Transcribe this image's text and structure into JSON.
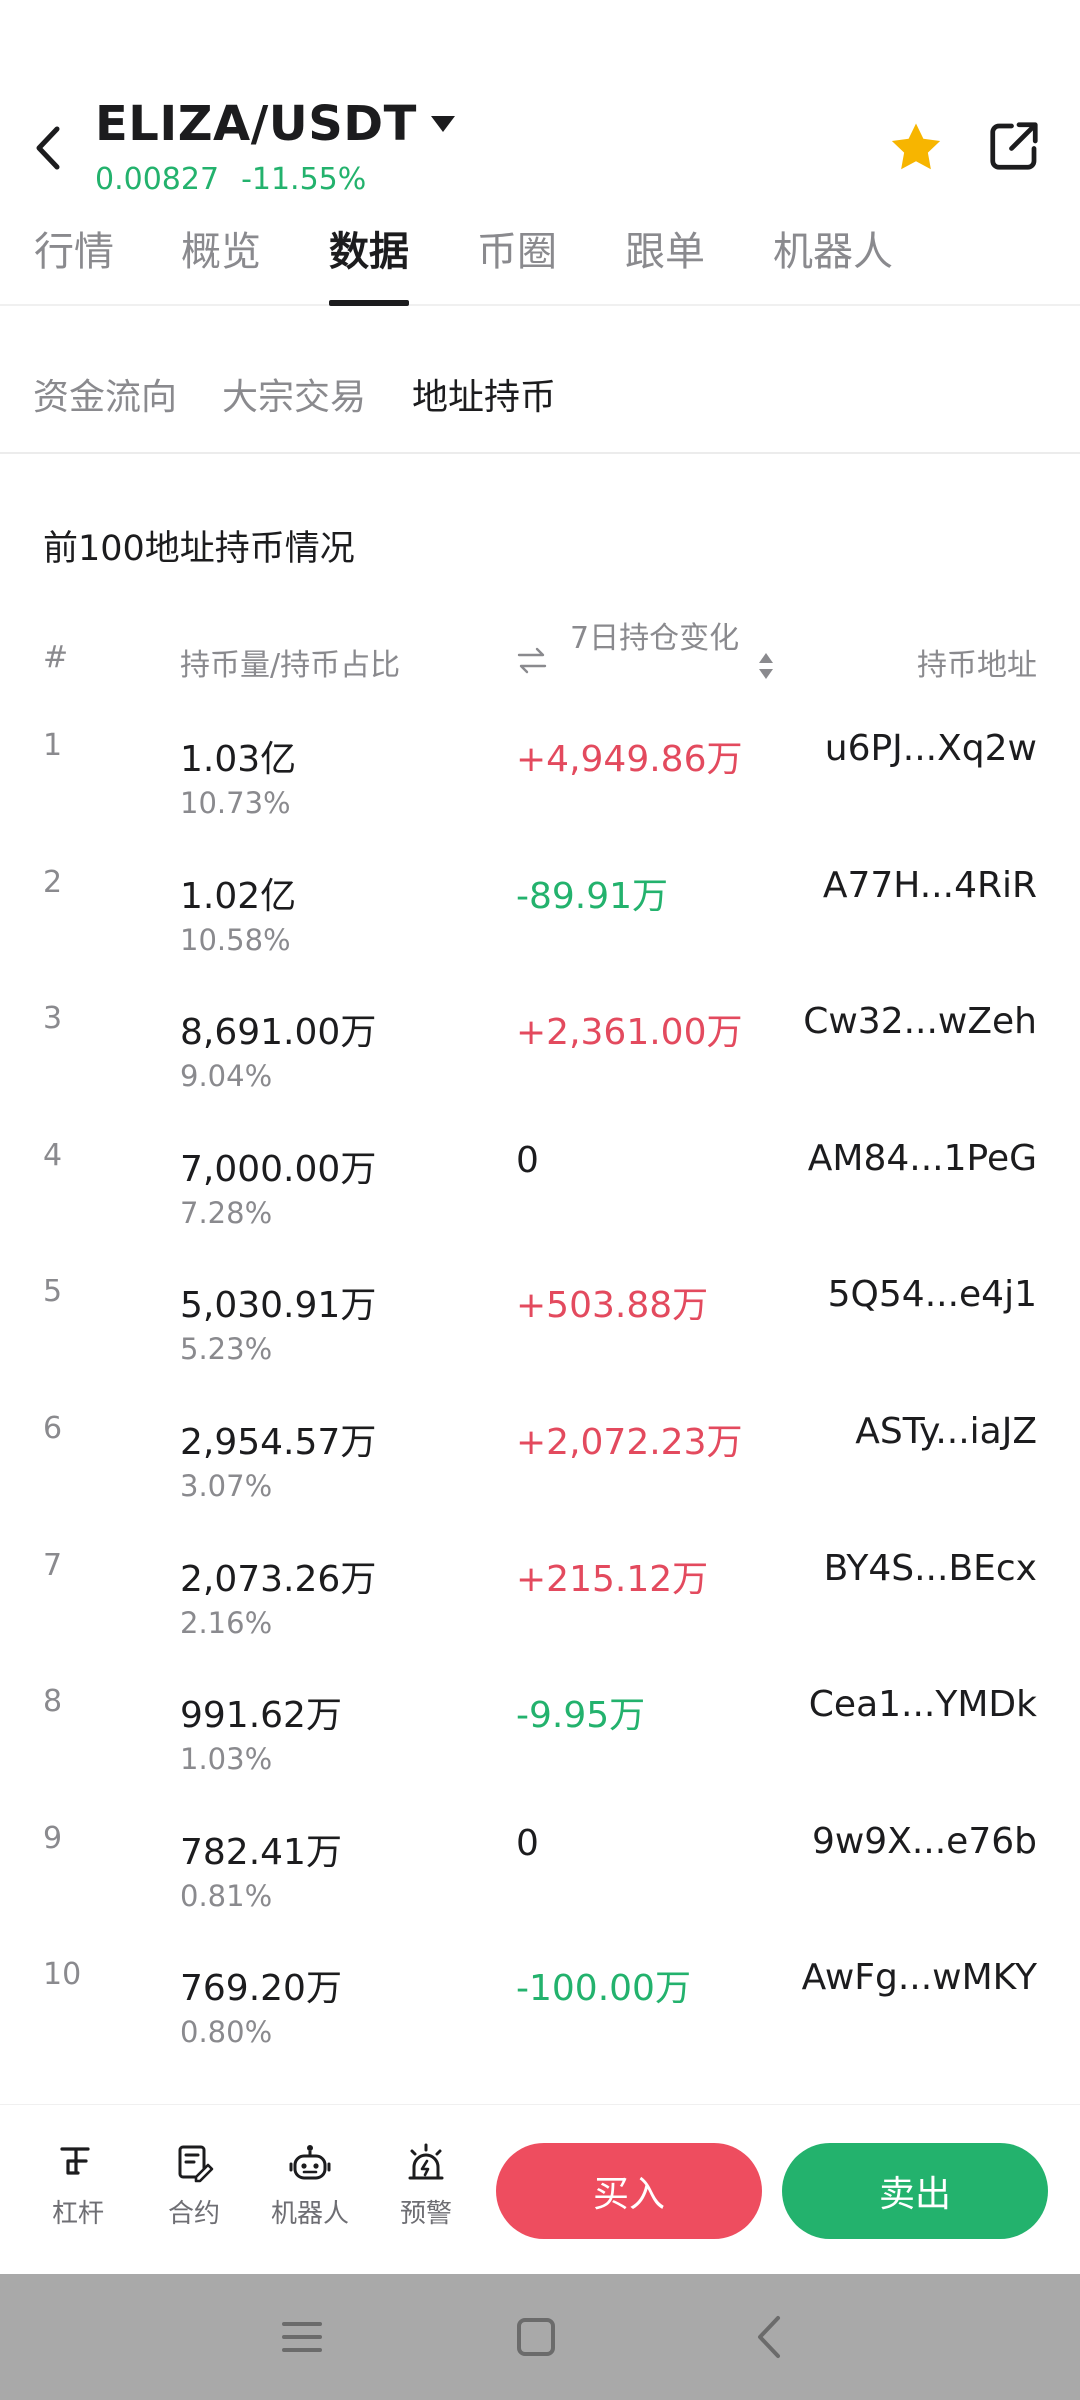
{
  "header": {
    "pair": "ELIZA/USDT",
    "price": "0.00827",
    "change": "-11.55%"
  },
  "main_tabs": [
    {
      "label": "行情",
      "active": false
    },
    {
      "label": "概览",
      "active": false
    },
    {
      "label": "数据",
      "active": true
    },
    {
      "label": "币圈",
      "active": false
    },
    {
      "label": "跟单",
      "active": false
    },
    {
      "label": "机器人",
      "active": false
    }
  ],
  "sub_tabs": [
    {
      "label": "资金流向",
      "active": false
    },
    {
      "label": "大宗交易",
      "active": false
    },
    {
      "label": "地址持币",
      "active": true
    }
  ],
  "section": {
    "title": "前100地址持币情况"
  },
  "table": {
    "headers": {
      "num": "#",
      "holdings": "持币量/持币占比",
      "change": "7日持仓变化",
      "address": "持币地址"
    },
    "rows": [
      {
        "num": "1",
        "amount": "1.03亿",
        "pct": "10.73%",
        "change": "+4,949.86万",
        "trend": "up",
        "address": "u6PJ...Xq2w"
      },
      {
        "num": "2",
        "amount": "1.02亿",
        "pct": "10.58%",
        "change": "-89.91万",
        "trend": "down",
        "address": "A77H...4RiR"
      },
      {
        "num": "3",
        "amount": "8,691.00万",
        "pct": "9.04%",
        "change": "+2,361.00万",
        "trend": "up",
        "address": "Cw32...wZeh"
      },
      {
        "num": "4",
        "amount": "7,000.00万",
        "pct": "7.28%",
        "change": "0",
        "trend": "flat",
        "address": "AM84...1PeG"
      },
      {
        "num": "5",
        "amount": "5,030.91万",
        "pct": "5.23%",
        "change": "+503.88万",
        "trend": "up",
        "address": "5Q54...e4j1"
      },
      {
        "num": "6",
        "amount": "2,954.57万",
        "pct": "3.07%",
        "change": "+2,072.23万",
        "trend": "up",
        "address": "ASTy...iaJZ"
      },
      {
        "num": "7",
        "amount": "2,073.26万",
        "pct": "2.16%",
        "change": "+215.12万",
        "trend": "up",
        "address": "BY4S...BEcx"
      },
      {
        "num": "8",
        "amount": "991.62万",
        "pct": "1.03%",
        "change": "-9.95万",
        "trend": "down",
        "address": "Cea1...YMDk"
      },
      {
        "num": "9",
        "amount": "782.41万",
        "pct": "0.81%",
        "change": "0",
        "trend": "flat",
        "address": "9w9X...e76b"
      },
      {
        "num": "10",
        "amount": "769.20万",
        "pct": "0.80%",
        "change": "-100.00万",
        "trend": "down",
        "address": "AwFg...wMKY"
      }
    ]
  },
  "bottom_bar": {
    "tools": [
      {
        "label": "杠杆",
        "icon": "leverage-icon"
      },
      {
        "label": "合约",
        "icon": "contract-icon"
      },
      {
        "label": "机器人",
        "icon": "robot-icon"
      },
      {
        "label": "预警",
        "icon": "alert-icon"
      }
    ],
    "buy_label": "买入",
    "sell_label": "卖出"
  },
  "colors": {
    "up": "#e34a5e",
    "down": "#23b26d",
    "buy": "#ee4d5f",
    "sell": "#23b26d",
    "star": "#f7b500"
  }
}
